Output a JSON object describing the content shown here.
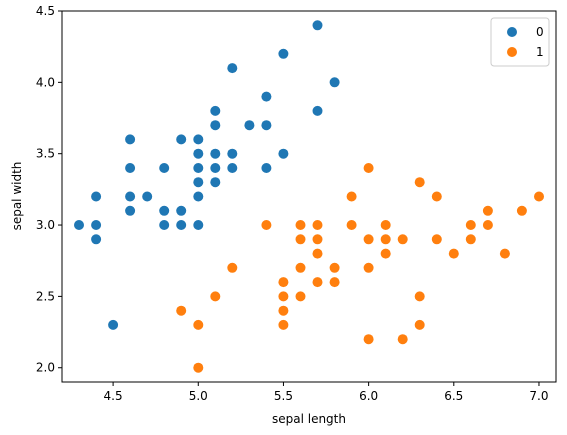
{
  "chart_data": {
    "type": "scatter",
    "title": "",
    "xlabel": "sepal length",
    "ylabel": "sepal width",
    "xlim": [
      4.2,
      7.1
    ],
    "ylim": [
      1.9,
      4.5
    ],
    "x_ticks": [
      4.5,
      5.0,
      5.5,
      6.0,
      6.5,
      7.0
    ],
    "x_tick_labels": [
      "4.5",
      "5.0",
      "5.5",
      "6.0",
      "6.5",
      "7.0"
    ],
    "y_ticks": [
      2.0,
      2.5,
      3.0,
      3.5,
      4.0,
      4.5
    ],
    "y_tick_labels": [
      "2.0",
      "2.5",
      "3.0",
      "3.5",
      "4.0",
      "4.5"
    ],
    "grid": false,
    "legend_position": "top-right",
    "series": [
      {
        "name": "0",
        "color": "#1f77b4",
        "points": [
          [
            4.3,
            3.0
          ],
          [
            4.4,
            3.0
          ],
          [
            4.4,
            2.9
          ],
          [
            4.4,
            3.2
          ],
          [
            4.5,
            2.3
          ],
          [
            4.6,
            3.1
          ],
          [
            4.6,
            3.2
          ],
          [
            4.6,
            3.4
          ],
          [
            4.6,
            3.6
          ],
          [
            4.7,
            3.2
          ],
          [
            4.8,
            3.0
          ],
          [
            4.8,
            3.1
          ],
          [
            4.8,
            3.4
          ],
          [
            4.9,
            3.0
          ],
          [
            4.9,
            3.1
          ],
          [
            4.9,
            3.6
          ],
          [
            5.0,
            3.0
          ],
          [
            5.0,
            3.2
          ],
          [
            5.0,
            3.3
          ],
          [
            5.0,
            3.4
          ],
          [
            5.0,
            3.5
          ],
          [
            5.0,
            3.6
          ],
          [
            5.1,
            3.3
          ],
          [
            5.1,
            3.4
          ],
          [
            5.1,
            3.5
          ],
          [
            5.1,
            3.7
          ],
          [
            5.1,
            3.8
          ],
          [
            5.2,
            3.4
          ],
          [
            5.2,
            3.5
          ],
          [
            5.2,
            4.1
          ],
          [
            5.3,
            3.7
          ],
          [
            5.4,
            3.4
          ],
          [
            5.4,
            3.7
          ],
          [
            5.4,
            3.9
          ],
          [
            5.5,
            3.5
          ],
          [
            5.5,
            4.2
          ],
          [
            5.7,
            3.8
          ],
          [
            5.7,
            4.4
          ],
          [
            5.8,
            4.0
          ]
        ]
      },
      {
        "name": "1",
        "color": "#ff7f0e",
        "points": [
          [
            4.9,
            2.4
          ],
          [
            5.0,
            2.0
          ],
          [
            5.0,
            2.3
          ],
          [
            5.1,
            2.5
          ],
          [
            5.2,
            2.7
          ],
          [
            5.4,
            3.0
          ],
          [
            5.5,
            2.3
          ],
          [
            5.5,
            2.4
          ],
          [
            5.5,
            2.5
          ],
          [
            5.5,
            2.6
          ],
          [
            5.6,
            2.5
          ],
          [
            5.6,
            2.7
          ],
          [
            5.6,
            2.9
          ],
          [
            5.6,
            3.0
          ],
          [
            5.7,
            2.6
          ],
          [
            5.7,
            2.8
          ],
          [
            5.7,
            2.9
          ],
          [
            5.7,
            3.0
          ],
          [
            5.8,
            2.6
          ],
          [
            5.8,
            2.7
          ],
          [
            5.9,
            3.0
          ],
          [
            5.9,
            3.2
          ],
          [
            6.0,
            2.2
          ],
          [
            6.0,
            2.7
          ],
          [
            6.0,
            2.9
          ],
          [
            6.0,
            3.4
          ],
          [
            6.1,
            2.8
          ],
          [
            6.1,
            2.9
          ],
          [
            6.1,
            3.0
          ],
          [
            6.2,
            2.2
          ],
          [
            6.2,
            2.9
          ],
          [
            6.3,
            2.3
          ],
          [
            6.3,
            2.5
          ],
          [
            6.3,
            3.3
          ],
          [
            6.4,
            2.9
          ],
          [
            6.4,
            3.2
          ],
          [
            6.5,
            2.8
          ],
          [
            6.6,
            2.9
          ],
          [
            6.6,
            3.0
          ],
          [
            6.7,
            3.0
          ],
          [
            6.7,
            3.1
          ],
          [
            6.8,
            2.8
          ],
          [
            6.9,
            3.1
          ],
          [
            7.0,
            3.2
          ]
        ]
      }
    ]
  }
}
